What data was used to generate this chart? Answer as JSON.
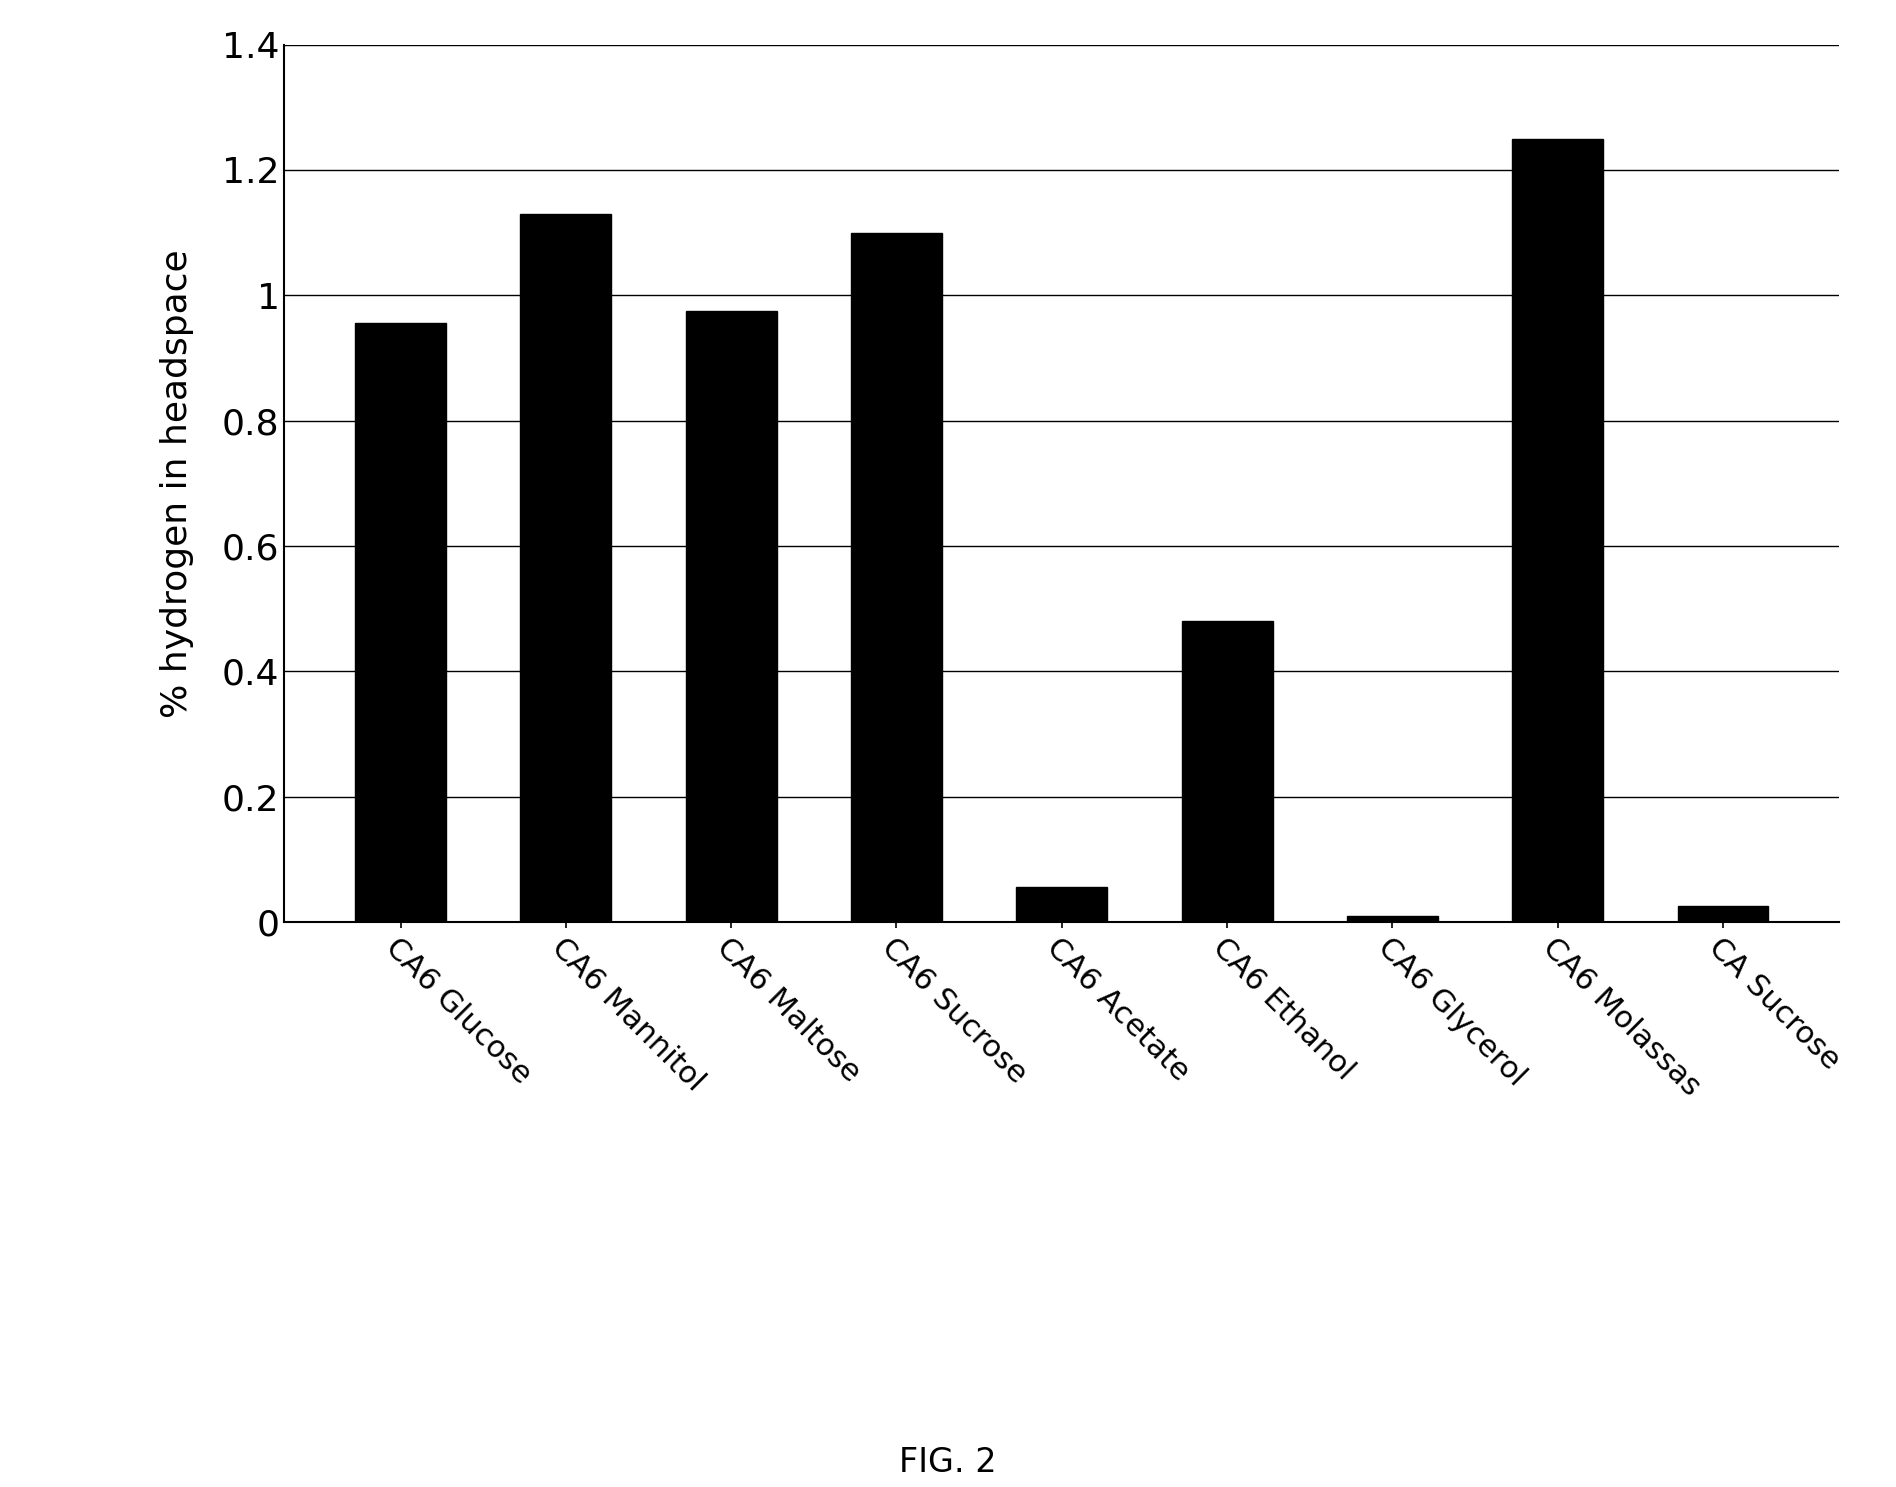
{
  "categories": [
    "CA6 Glucose",
    "CA6 Mannitol",
    "CA6 Maltose",
    "CA6 Sucrose",
    "CA6 Acetate",
    "CA6 Ethanol",
    "CA6 Glycerol",
    "CA6 Molassas",
    "CA Sucrose"
  ],
  "values": [
    0.955,
    1.13,
    0.975,
    1.1,
    0.055,
    0.48,
    0.01,
    1.25,
    0.025
  ],
  "bar_color": "#000000",
  "ylabel": "% hydrogen in headspace",
  "ylim": [
    0,
    1.4
  ],
  "yticks": [
    0,
    0.2,
    0.4,
    0.6,
    0.8,
    1.0,
    1.2,
    1.4
  ],
  "figure_caption": "FIG. 2",
  "background_color": "#ffffff",
  "bar_width": 0.55,
  "ylabel_fontsize": 26,
  "ytick_fontsize": 26,
  "caption_fontsize": 24,
  "xticklabel_fontsize": 22
}
